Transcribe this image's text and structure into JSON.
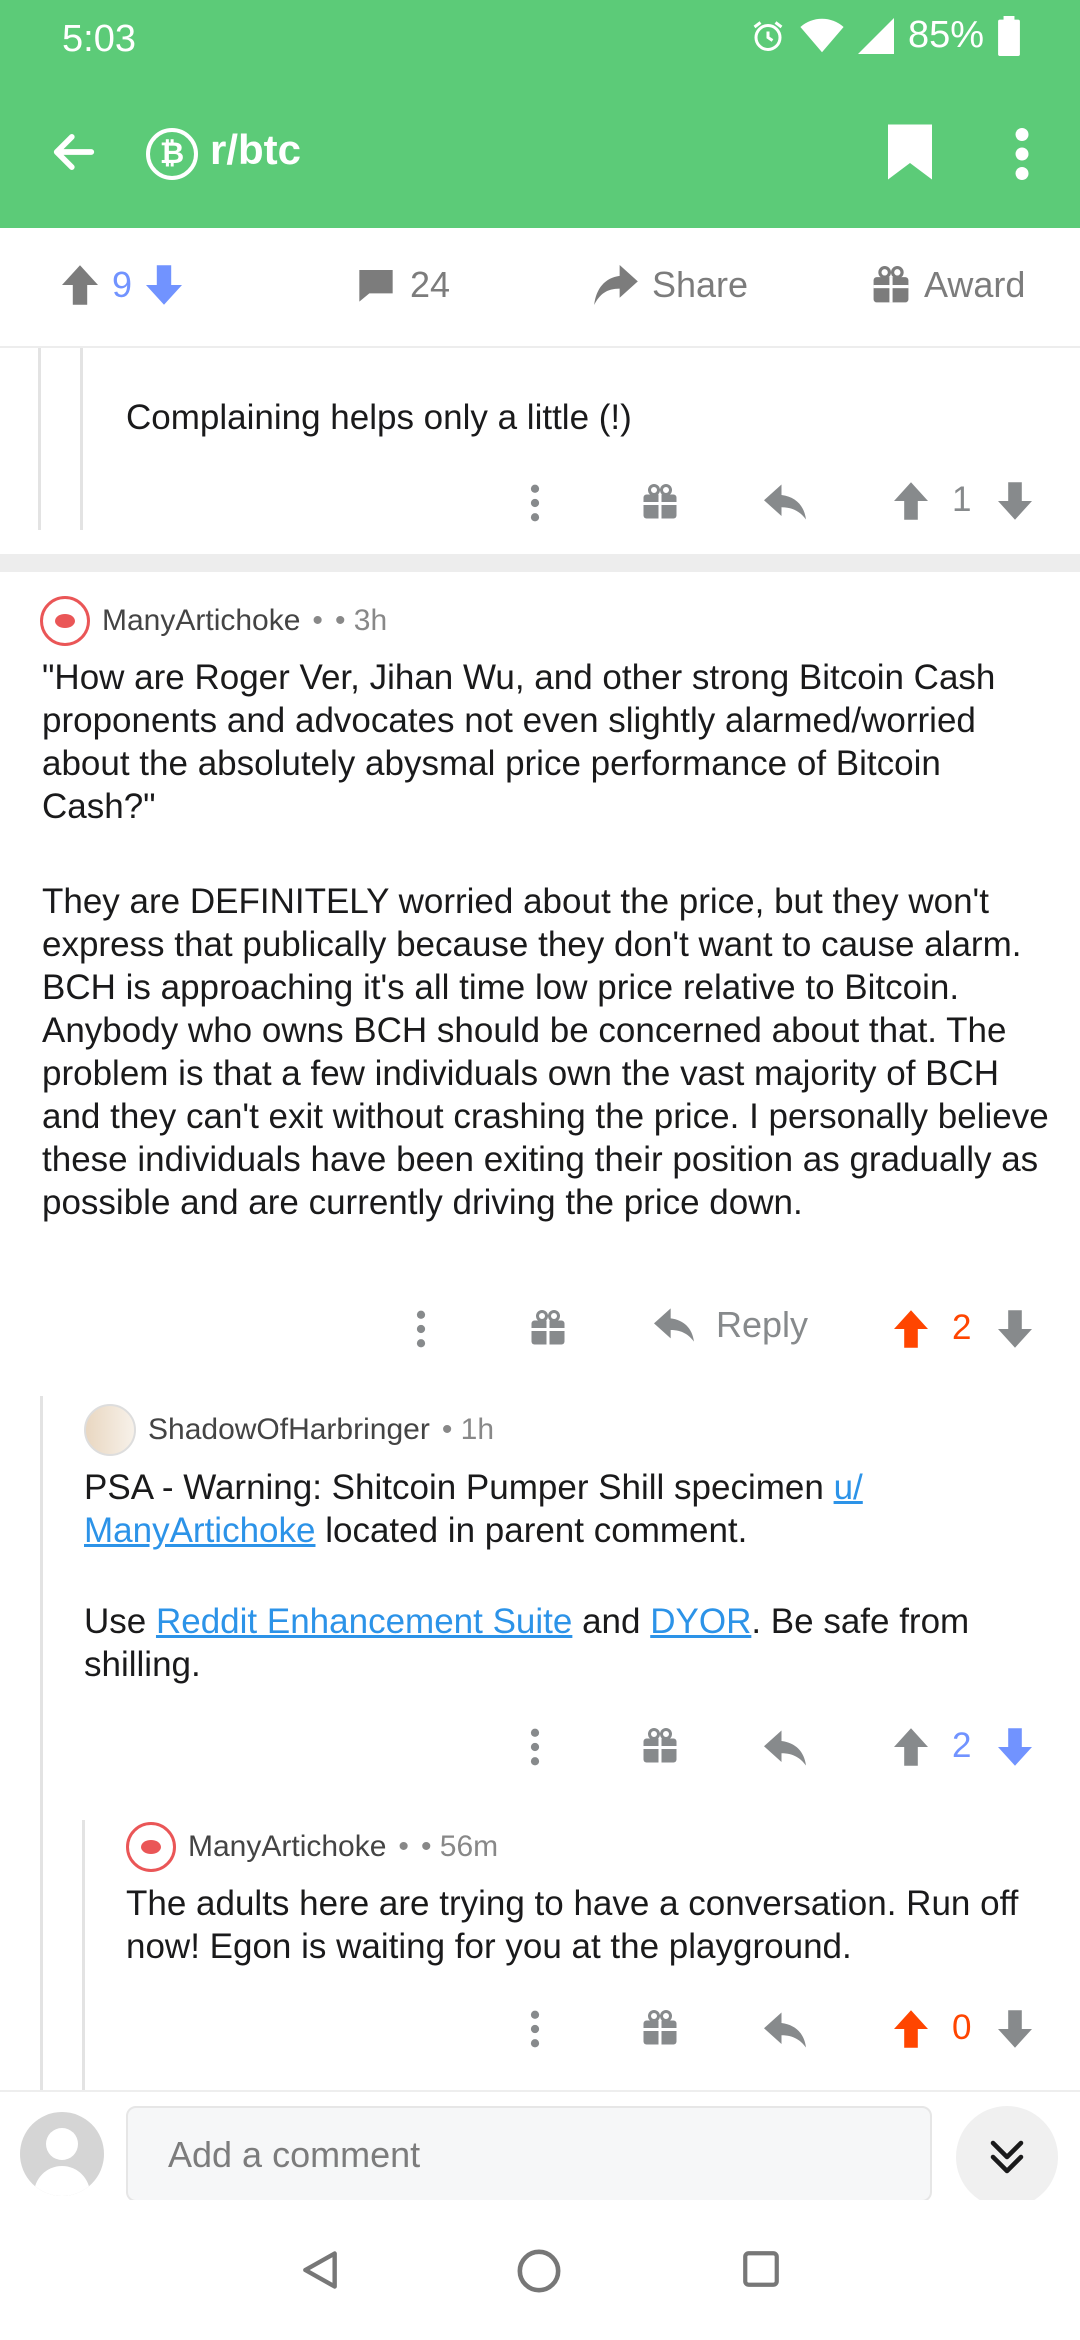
{
  "status": {
    "time": "5:03",
    "battery": "85%"
  },
  "appbar": {
    "subreddit": "r/btc"
  },
  "post_actions": {
    "score": "9",
    "comments": "24",
    "share": "Share",
    "award": "Award"
  },
  "comment_prev": {
    "text": "Complaining helps only a little (!)",
    "score": "1"
  },
  "comment1": {
    "author": "ManyArtichoke",
    "meta_dot": "•",
    "time": "• 3h",
    "body1": "\"How are Roger Ver, Jihan Wu, and other strong Bitcoin Cash proponents and advocates not even slightly alarmed/worried about the absolutely abysmal price performance of Bitcoin Cash?\"",
    "body2": "They are DEFINITELY worried about the price, but they won't express that publically because they don't want to cause alarm. BCH is approaching it's all time low price relative to Bitcoin. Anybody who owns BCH should be concerned about that. The problem is that a few individuals own the vast majority of BCH and they can't exit without crashing the price. I personally believe these individuals have been exiting their position as gradually as possible and are currently driving the price down.",
    "reply": "Reply",
    "score": "2"
  },
  "comment2": {
    "author": "ShadowOfHarbringer",
    "time": "• 1h",
    "line1_a": "PSA - Warning: Shitcoin Pumper Shill specimen ",
    "line1_link": "u/ ManyArtichoke",
    "line1_b": " located in parent comment.",
    "line2_a": "Use ",
    "line2_link1": "Reddit Enhancement Suite",
    "line2_b": " and ",
    "line2_link2": "DYOR",
    "line2_c": ". Be safe from shilling.",
    "score": "2"
  },
  "comment3": {
    "author": "ManyArtichoke",
    "meta_dot": "•",
    "time": "• 56m",
    "body": "The adults here are trying to have a conversation. Run off now! Egon is waiting for you at the playground.",
    "score": "0"
  },
  "compose": {
    "placeholder": "Add a comment"
  }
}
